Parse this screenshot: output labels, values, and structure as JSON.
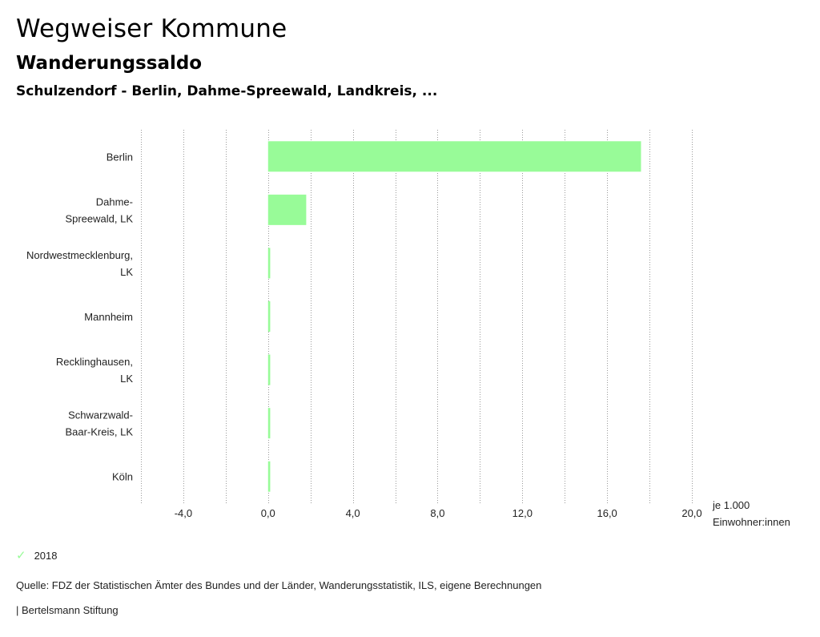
{
  "header": {
    "title": "Wegweiser Kommune",
    "subtitle": "Wanderungssaldo",
    "region_line": "Schulzendorf - Berlin, Dahme-Spreewald, Landkreis, ..."
  },
  "chart_data": {
    "type": "bar",
    "orientation": "horizontal",
    "categories": [
      [
        "Berlin"
      ],
      [
        "Dahme-",
        "Spreewald, LK"
      ],
      [
        "Nordwestmecklenburg,",
        "LK"
      ],
      [
        "Mannheim"
      ],
      [
        "Recklinghausen,",
        "LK"
      ],
      [
        "Schwarzwald-",
        "Baar-Kreis, LK"
      ],
      [
        "Köln"
      ]
    ],
    "series": [
      {
        "name": "2018",
        "color": "#98fb98",
        "values": [
          17.6,
          1.8,
          0.1,
          0.1,
          0.1,
          0.1,
          0.1
        ]
      }
    ],
    "xlim": [
      -6.0,
      20.0
    ],
    "major_ticks": [
      -4,
      0,
      4,
      8,
      12,
      16,
      20
    ],
    "tick_labels": [
      "-4,0",
      "0,0",
      "4,0",
      "8,0",
      "12,0",
      "16,0",
      "20,0"
    ],
    "gridlines_every": 2,
    "unit_label": [
      "je 1.000",
      "Einwohner:innen"
    ]
  },
  "legend": {
    "label": "2018",
    "icon": "check-icon",
    "color": "#98fb98"
  },
  "footer": {
    "source": "Quelle: FDZ der Statistischen Ämter des Bundes und der Länder, Wanderungsstatistik, ILS, eigene Berechnungen",
    "publisher": "| Bertelsmann Stiftung"
  }
}
